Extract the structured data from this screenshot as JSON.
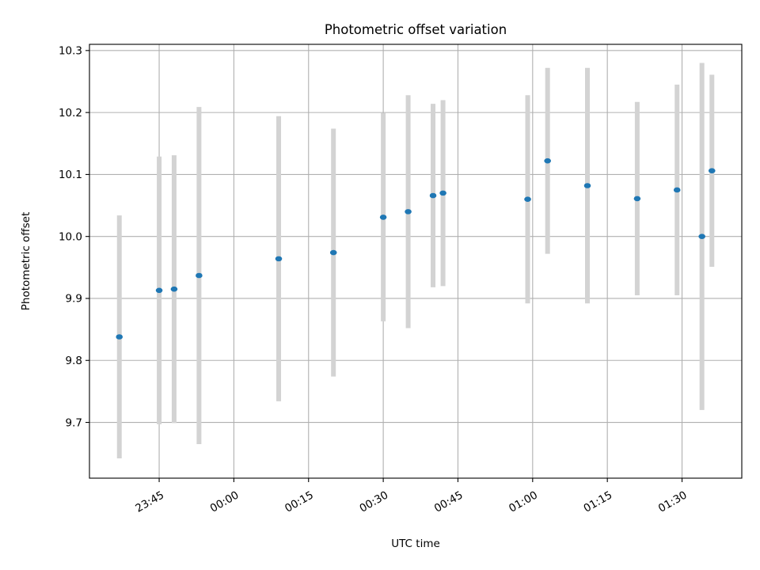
{
  "chart_data": {
    "type": "scatter",
    "title": "Photometric offset variation",
    "xlabel": "UTC time",
    "ylabel": "Photometric offset",
    "xlim": [
      "23:31",
      "01:42"
    ],
    "ylim": [
      9.61,
      10.31
    ],
    "xticks": [
      "23:45",
      "00:00",
      "00:15",
      "00:30",
      "00:45",
      "01:00",
      "01:15",
      "01:30"
    ],
    "yticks": [
      "9.7",
      "9.8",
      "9.9",
      "10.0",
      "10.1",
      "10.2",
      "10.3"
    ],
    "grid": true,
    "x": [
      "23:37",
      "23:45",
      "23:48",
      "23:53",
      "00:09",
      "00:20",
      "00:30",
      "00:35",
      "00:40",
      "00:42",
      "00:59",
      "01:03",
      "01:11",
      "01:21",
      "01:29",
      "01:34",
      "01:36"
    ],
    "y": [
      9.838,
      9.913,
      9.915,
      9.937,
      9.964,
      9.974,
      10.031,
      10.04,
      10.066,
      10.07,
      10.06,
      10.122,
      10.082,
      10.061,
      10.075,
      10.0,
      10.106
    ],
    "yerr": [
      0.196,
      0.216,
      0.216,
      0.272,
      0.23,
      0.2,
      0.168,
      0.188,
      0.148,
      0.15,
      0.168,
      0.15,
      0.19,
      0.156,
      0.17,
      0.28,
      0.155
    ],
    "colors": {
      "marker": "#1f77b4",
      "errorbar": "#d3d3d3"
    }
  }
}
